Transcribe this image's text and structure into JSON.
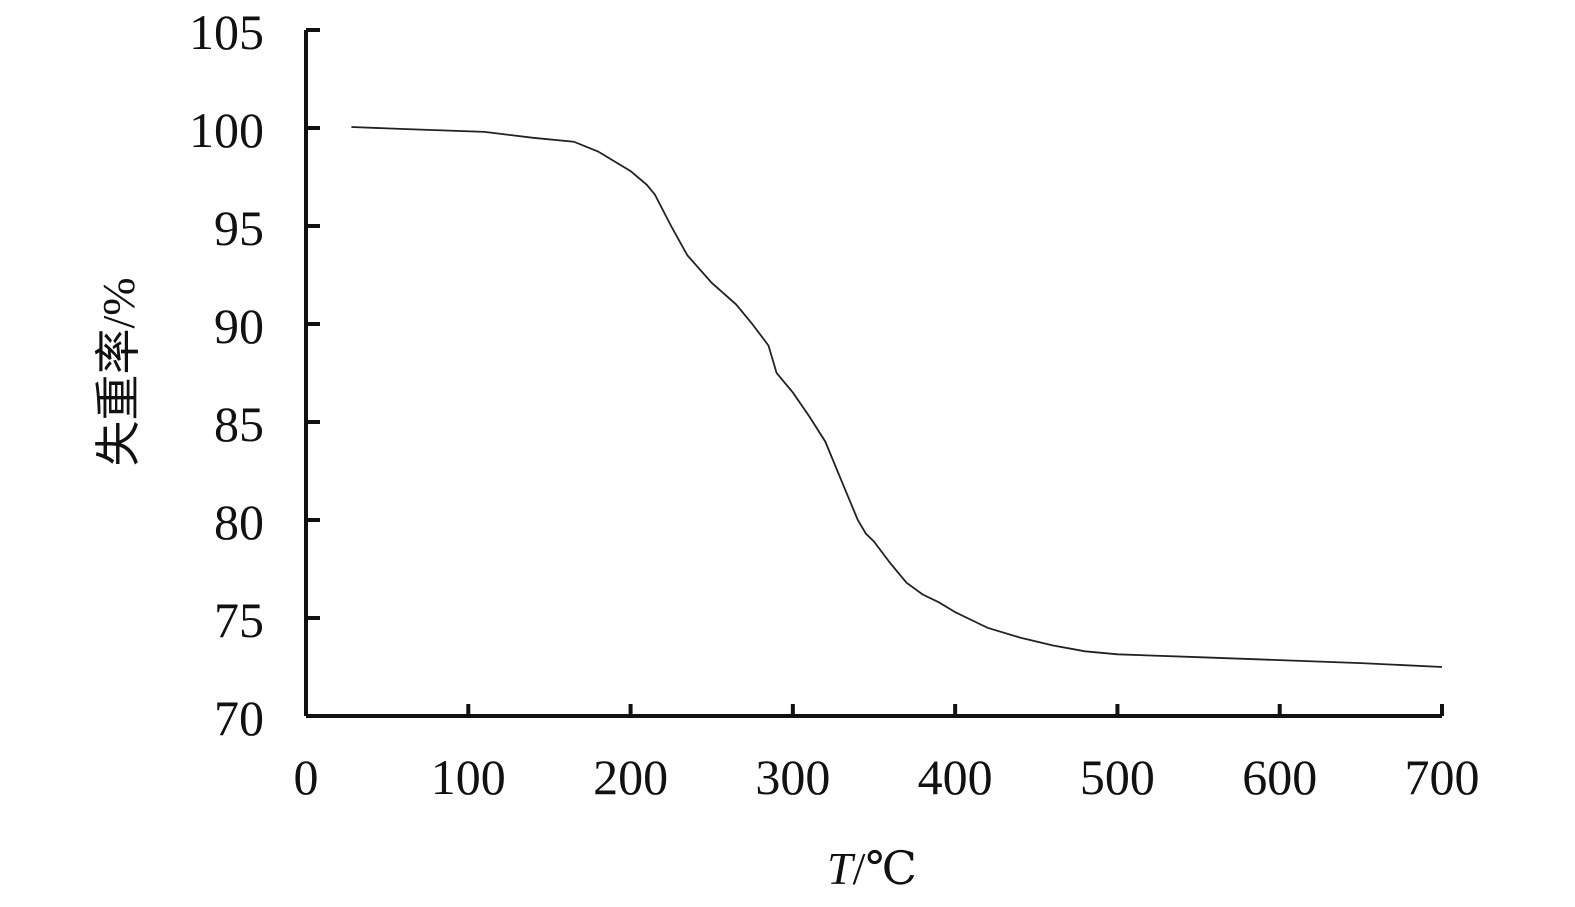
{
  "chart_data": {
    "type": "line",
    "title": "",
    "xlabel_var": "T",
    "xlabel_unit": "/℃",
    "ylabel": "失重率/%",
    "xlim": [
      0,
      700
    ],
    "ylim": [
      70,
      105
    ],
    "x_ticks": [
      0,
      100,
      200,
      300,
      400,
      500,
      600,
      700
    ],
    "x_tick_labels": [
      "0",
      "100",
      "200",
      "300",
      "400",
      "500",
      "600",
      "700"
    ],
    "y_ticks": [
      70,
      75,
      80,
      85,
      90,
      95,
      100,
      105
    ],
    "y_tick_labels": [
      "70",
      "75",
      "80",
      "85",
      "90",
      "95",
      "100",
      "105"
    ],
    "grid": false,
    "legend": "none",
    "series": [
      {
        "color": "#222222",
        "x": [
          28,
          60,
          110,
          140,
          165,
          180,
          200,
          210,
          215,
          225,
          235,
          250,
          265,
          275,
          285,
          290,
          300,
          310,
          320,
          330,
          340,
          345,
          350,
          360,
          370,
          380,
          390,
          400,
          410,
          420,
          440,
          460,
          480,
          500,
          550,
          600,
          650,
          700
        ],
        "y": [
          100.05,
          99.95,
          99.8,
          99.5,
          99.3,
          98.8,
          97.8,
          97.1,
          96.6,
          95.0,
          93.5,
          92.1,
          91.0,
          90.0,
          88.9,
          87.5,
          86.5,
          85.3,
          84.0,
          82.0,
          80.0,
          79.3,
          78.9,
          77.8,
          76.8,
          76.2,
          75.8,
          75.3,
          74.9,
          74.5,
          74.0,
          73.6,
          73.3,
          73.15,
          73.0,
          72.85,
          72.7,
          72.5
        ]
      }
    ]
  }
}
